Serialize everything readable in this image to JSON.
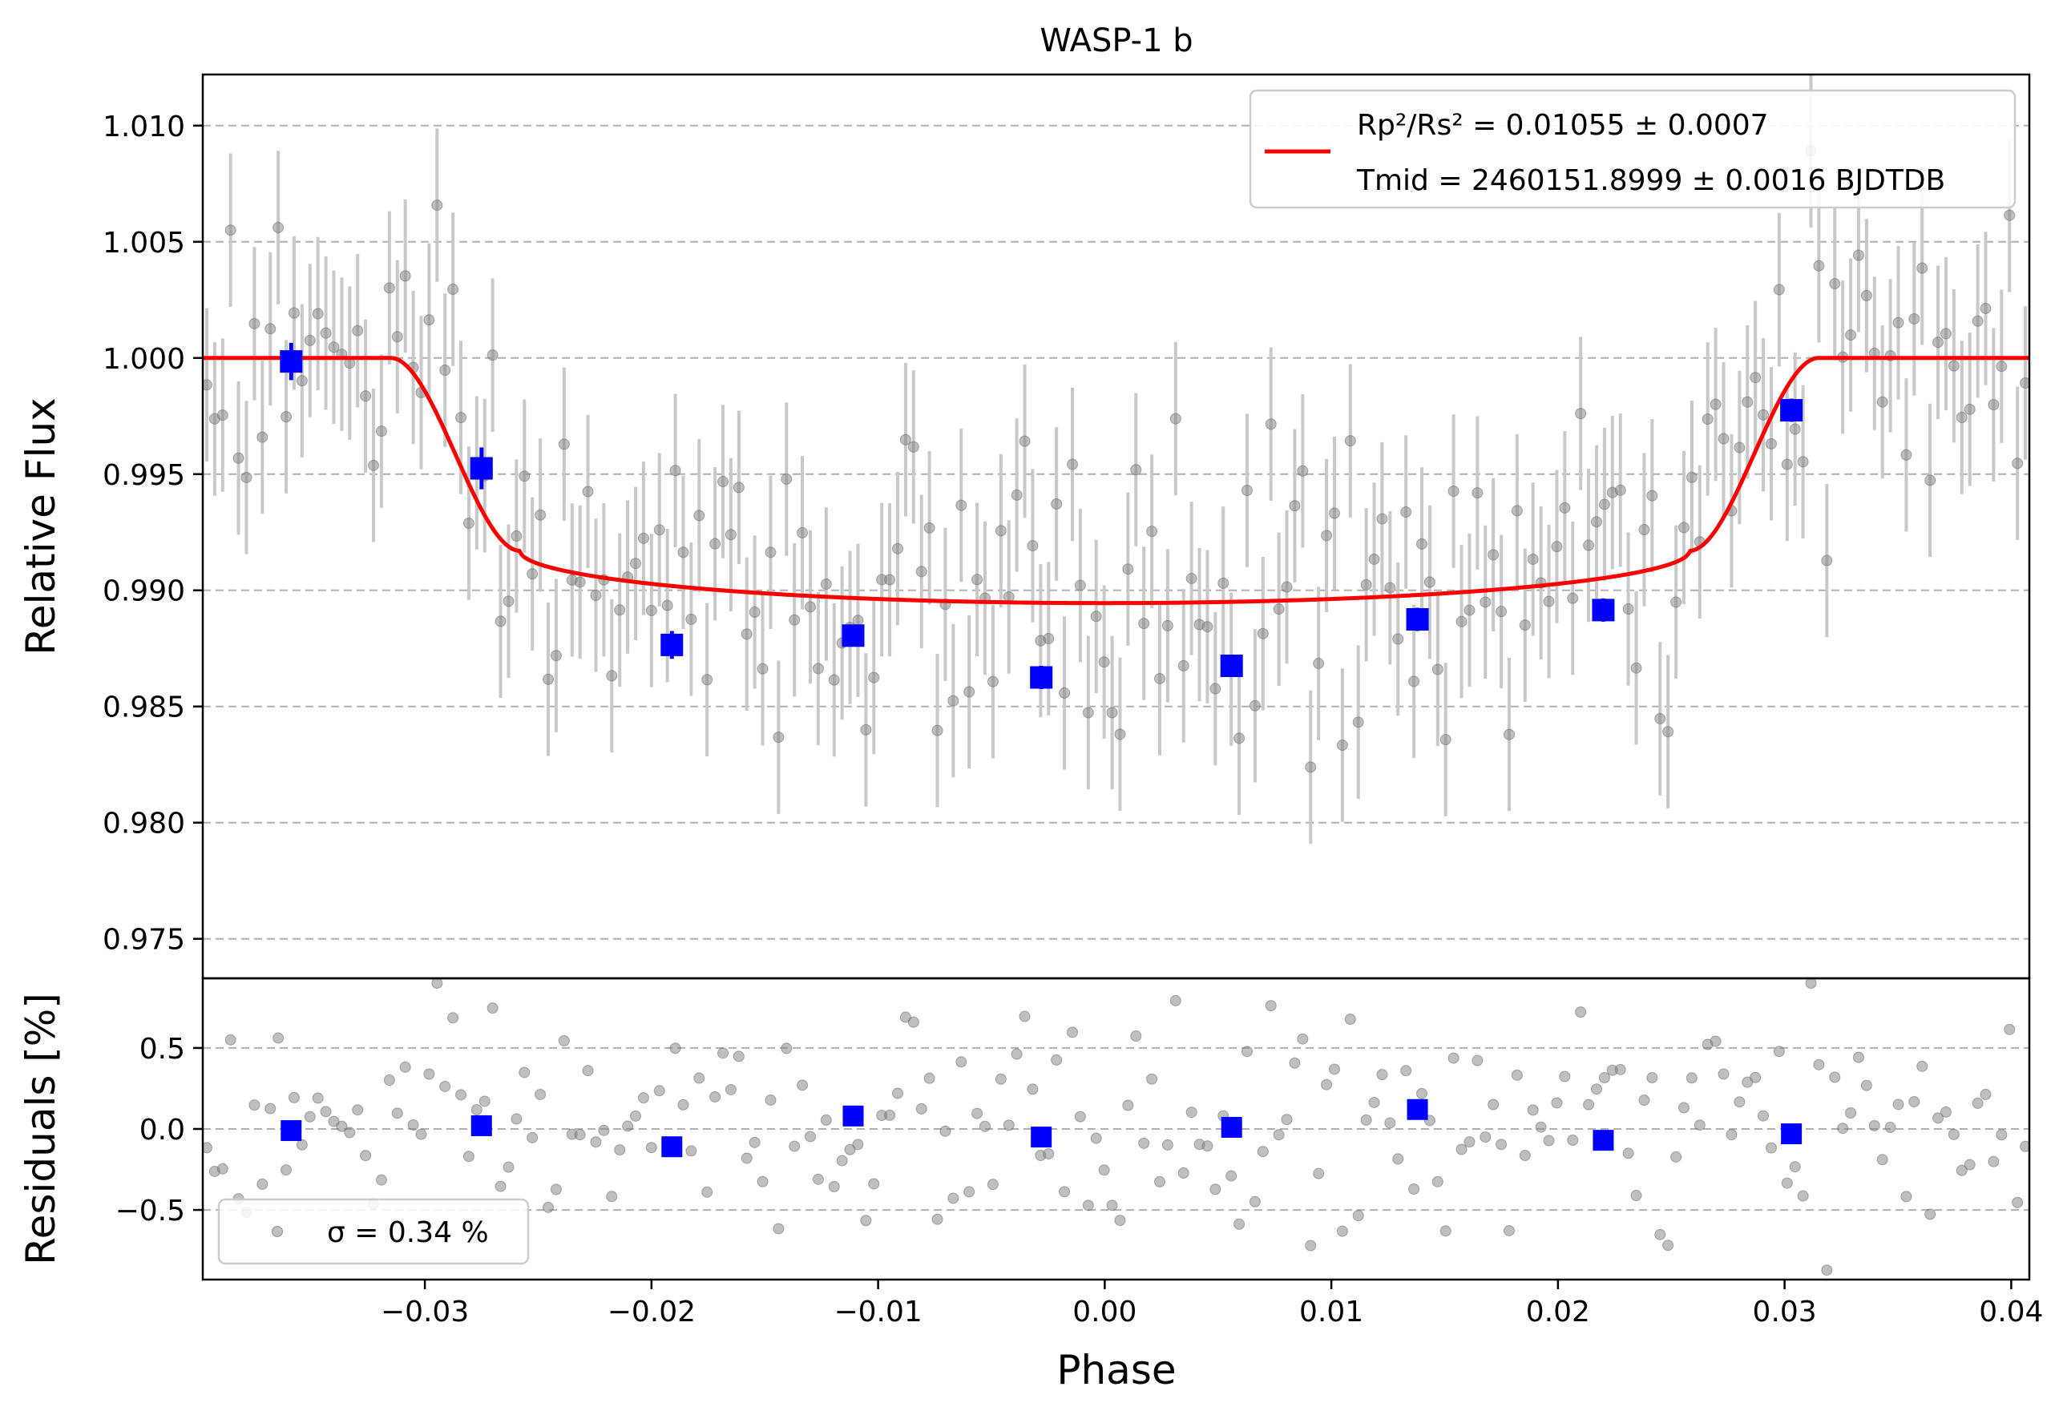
{
  "chart_data": [
    {
      "type": "scatter",
      "panel": "light-curve",
      "title": "WASP-1 b",
      "xlabel": "",
      "ylabel": "Relative Flux",
      "xlim": [
        -0.0398,
        0.0408
      ],
      "ylim": [
        0.9733,
        1.0122
      ],
      "yticks": [
        "0.975",
        "0.980",
        "0.985",
        "0.990",
        "0.995",
        "1.000",
        "1.005",
        "1.010"
      ],
      "ytick_values": [
        0.975,
        0.98,
        0.985,
        0.99,
        0.995,
        1.0,
        1.005,
        1.01
      ],
      "grid": "y-dashed",
      "legend_position": "upper-right",
      "legend_rp": "Rp²/Rs² = 0.01055 ± 0.0007",
      "legend_tmid": "Tmid = 2460151.8999 ± 0.0016 BJDTDB",
      "model": {
        "color": "#ff0000",
        "baseline": 1.0,
        "depth": 0.01055,
        "t1": 0.0315,
        "t2": 0.0258,
        "limb_depth_at_contact": 0.0083
      },
      "binned": [
        {
          "x": -0.0359,
          "y": 0.99985,
          "err": 0.0008
        },
        {
          "x": -0.0275,
          "y": 0.99525,
          "err": 0.0009
        },
        {
          "x": -0.0191,
          "y": 0.98765,
          "err": 0.0006
        },
        {
          "x": -0.0111,
          "y": 0.98805,
          "err": 0.0004
        },
        {
          "x": -0.0028,
          "y": 0.98625,
          "err": 0.0005
        },
        {
          "x": 0.0056,
          "y": 0.98675,
          "err": 0.0004
        },
        {
          "x": 0.0138,
          "y": 0.98875,
          "err": 0.0005
        },
        {
          "x": 0.022,
          "y": 0.98915,
          "err": 0.0005
        },
        {
          "x": 0.0303,
          "y": 0.99775,
          "err": 0.0005
        }
      ],
      "binned_color": "#0000ff",
      "raw_color": "#808080",
      "raw_scatter_sigma_pct": 0.34,
      "raw_n": 230,
      "raw_error": 0.0033
    },
    {
      "type": "scatter",
      "panel": "residuals",
      "xlabel": "Phase",
      "ylabel": "Residuals [%]",
      "xlim": [
        -0.0398,
        0.0408
      ],
      "ylim": [
        -0.93,
        0.93
      ],
      "yticks": [
        "−0.5",
        "0.0",
        "0.5"
      ],
      "ytick_values": [
        -0.5,
        0.0,
        0.5
      ],
      "xticks": [
        "−0.03",
        "−0.02",
        "−0.01",
        "0.00",
        "0.01",
        "0.02",
        "0.03",
        "0.04"
      ],
      "xtick_values": [
        -0.03,
        -0.02,
        -0.01,
        0.0,
        0.01,
        0.02,
        0.03,
        0.04
      ],
      "grid": "y-dashed",
      "legend_position": "lower-left",
      "legend_label": "σ = 0.34 %",
      "binned": [
        {
          "x": -0.0359,
          "y": -0.01
        },
        {
          "x": -0.0275,
          "y": 0.02
        },
        {
          "x": -0.0191,
          "y": -0.11
        },
        {
          "x": -0.0111,
          "y": 0.08
        },
        {
          "x": -0.0028,
          "y": -0.05
        },
        {
          "x": 0.0056,
          "y": 0.01
        },
        {
          "x": 0.0138,
          "y": 0.12
        },
        {
          "x": 0.022,
          "y": -0.07
        },
        {
          "x": 0.0303,
          "y": -0.03
        }
      ]
    }
  ]
}
